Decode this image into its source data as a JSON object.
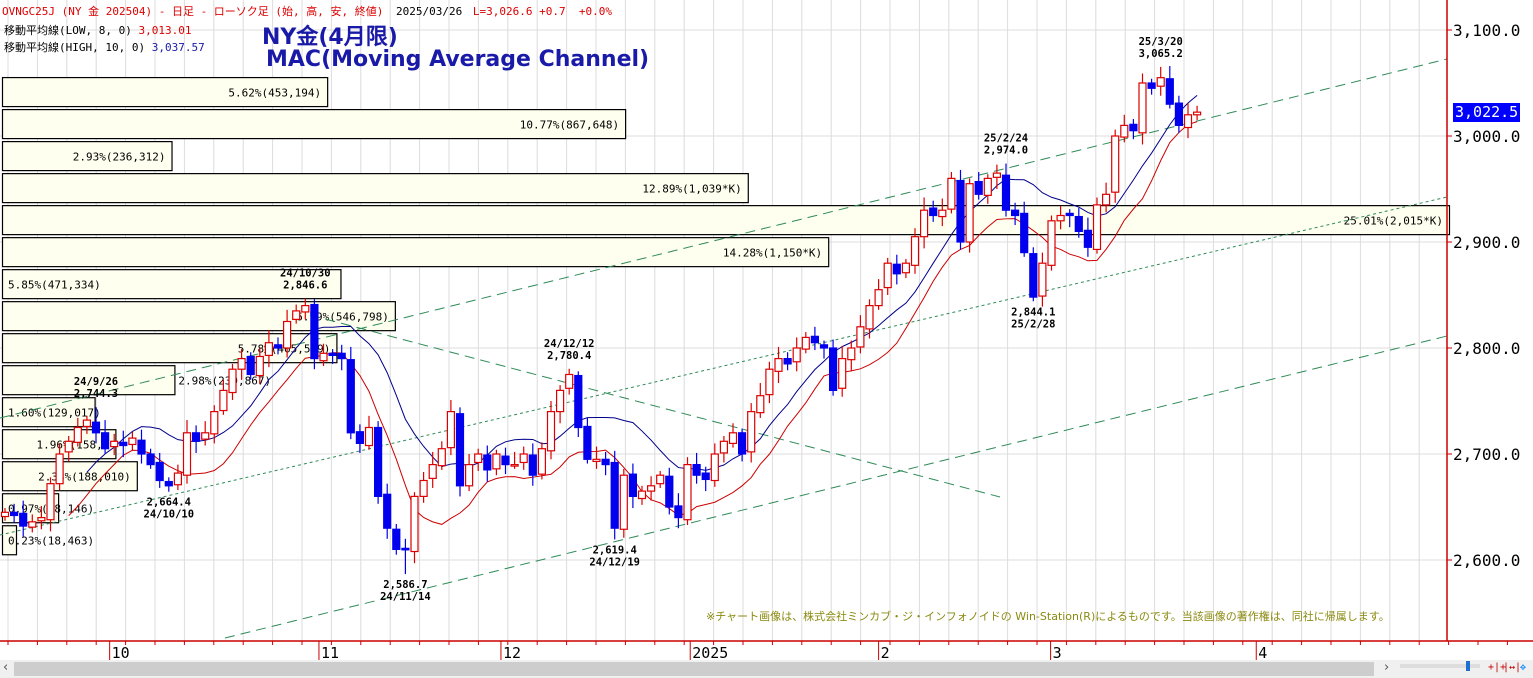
{
  "header": {
    "symbol_line": "OVNGC25J (NY 金 202504) - 日足 - ローソク足 (始, 高, 安, 終値)",
    "date": "2025/03/26",
    "last": "L=3,026.6 +0.7  +0.0%",
    "ma_low_label": "移動平均線(LOW, 8, 0)",
    "ma_low_value": "3,013.01",
    "ma_high_label": "移動平均線(HIGH, 10, 0)",
    "ma_high_value": "3,037.57"
  },
  "title": {
    "line1": "NY金(4月限)",
    "line2": "MAC(Moving Average Channel)"
  },
  "current_price": "3,022.5",
  "note": "※チャート画像は、株式会社ミンカブ・ジ・インフォノイドの Win-Station(R)によるものです。当該画像の著作権は、同社に帰属します。",
  "colors": {
    "up": "#dd0000",
    "down": "#0000ee",
    "ma_high": "#00008b",
    "ma_low": "#cc0000",
    "trend": "#2e8b57",
    "box_fill": "#fffff0",
    "axis": "#cc0000"
  },
  "chart_data": {
    "type": "candlestick",
    "y_ticks": [
      "3,100.0",
      "3,000.0",
      "2,900.0",
      "2,800.0",
      "2,700.0",
      "2,600.0"
    ],
    "y_tick_values": [
      3100,
      3000,
      2900,
      2800,
      2700,
      2600
    ],
    "ylim": [
      2530,
      3129
    ],
    "x_labels": [
      {
        "label": "10",
        "index": 11.5
      },
      {
        "label": "11",
        "index": 34.5
      },
      {
        "label": "12",
        "index": 54.5
      },
      {
        "label": "2025",
        "index": 75.3
      },
      {
        "label": "2",
        "index": 96
      },
      {
        "label": "3",
        "index": 114.9
      },
      {
        "label": "4",
        "index": 137.5
      }
    ],
    "closes": [
      2645,
      2642,
      2632,
      2636,
      2640,
      2672,
      2700,
      2712,
      2725,
      2732,
      2720,
      2705,
      2712,
      2708,
      2715,
      2700,
      2690,
      2675,
      2670,
      2682,
      2720,
      2712,
      2720,
      2740,
      2760,
      2780,
      2790,
      2775,
      2792,
      2805,
      2800,
      2825,
      2835,
      2840,
      2790,
      2795,
      2793,
      2790,
      2720,
      2710,
      2725,
      2660,
      2630,
      2610,
      2610,
      2660,
      2675,
      2690,
      2705,
      2740,
      2670,
      2690,
      2700,
      2685,
      2700,
      2690,
      2690,
      2700,
      2680,
      2705,
      2740,
      2760,
      2775,
      2725,
      2695,
      2695,
      2690,
      2630,
      2680,
      2660,
      2665,
      2670,
      2680,
      2650,
      2640,
      2690,
      2680,
      2676,
      2700,
      2712,
      2720,
      2700,
      2740,
      2755,
      2780,
      2790,
      2785,
      2800,
      2810,
      2805,
      2800,
      2760,
      2790,
      2800,
      2820,
      2840,
      2855,
      2880,
      2870,
      2880,
      2905,
      2930,
      2925,
      2930,
      2960,
      2900,
      2955,
      2945,
      2960,
      2965,
      2930,
      2925,
      2890,
      2848,
      2880,
      2920,
      2925,
      2925,
      2910,
      2895,
      2935,
      2945,
      3000,
      3010,
      3005,
      3050,
      3045,
      3055,
      3030,
      3010,
      3020,
      3022.5
    ],
    "extremes": [
      {
        "index": 10,
        "type": "high",
        "value": 2744.3,
        "date": "24/9/26",
        "price": "2,744.3"
      },
      {
        "index": 18,
        "type": "low",
        "value": 2664.4,
        "date": "24/10/10",
        "price": "2,664.4"
      },
      {
        "index": 33,
        "type": "high",
        "value": 2846.6,
        "date": "24/10/30",
        "price": "2,846.6"
      },
      {
        "index": 44,
        "type": "low",
        "value": 2586.7,
        "date": "24/11/14",
        "price": "2,586.7"
      },
      {
        "index": 62,
        "type": "high",
        "value": 2780.4,
        "date": "24/12/12",
        "price": "2,780.4"
      },
      {
        "index": 67,
        "type": "low",
        "value": 2619.4,
        "date": "24/12/19",
        "price": "2,619.4"
      },
      {
        "index": 110,
        "type": "high",
        "value": 2974.0,
        "date": "25/2/24",
        "price": "2,974.0"
      },
      {
        "index": 113,
        "type": "low",
        "value": 2844.1,
        "date": "25/2/28",
        "price": "2,844.1"
      },
      {
        "index": 127,
        "type": "high",
        "value": 3065.2,
        "date": "25/3/20",
        "price": "3,065.2"
      }
    ],
    "ma_high_period": 10,
    "ma_low_period": 8,
    "volume_profile": [
      {
        "label": "5.62%(453,194)",
        "pct": 5.62
      },
      {
        "label": "10.77%(867,648)",
        "pct": 10.77
      },
      {
        "label": "2.93%(236,312)",
        "pct": 2.93
      },
      {
        "label": "12.89%(1,039*K)",
        "pct": 12.89
      },
      {
        "label": "25.01%(2,015*K)",
        "pct": 25.01
      },
      {
        "label": "14.28%(1,150*K)",
        "pct": 14.28
      },
      {
        "label": "5.85%(471,334)",
        "pct": 5.85
      },
      {
        "label": "6.79%(546,798)",
        "pct": 6.79
      },
      {
        "label": "5.78%(465,579)",
        "pct": 5.78
      },
      {
        "label": "2.98%(239,867)",
        "pct": 2.98
      },
      {
        "label": "1.60%(129,017)",
        "pct": 1.6
      },
      {
        "label": "1.96%(158,1",
        "pct": 1.96
      },
      {
        "label": "2.33%(188,010)",
        "pct": 2.33
      },
      {
        "label": "0.97%(78,146)",
        "pct": 0.97
      },
      {
        "label": "0.23%(18,463)",
        "pct": 0.23
      }
    ],
    "volume_profile_top_price": 3057,
    "volume_profile_band": 30.2
  }
}
